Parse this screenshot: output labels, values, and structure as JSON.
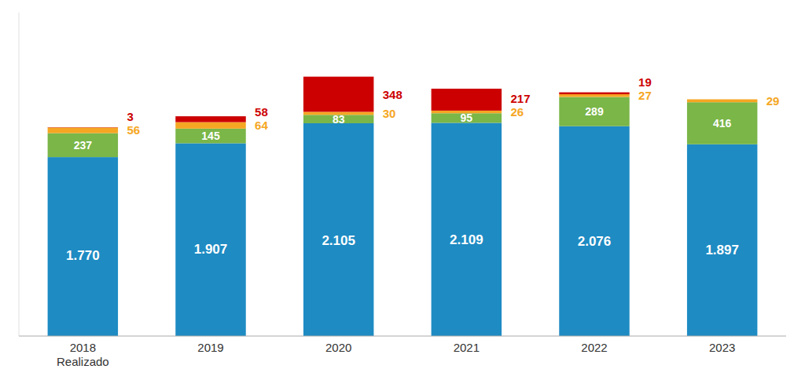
{
  "chart_data": {
    "type": "bar",
    "stacked": true,
    "data_labels": true,
    "grid": false,
    "tick_labels": "x",
    "categories": [
      "2018\nRealizado",
      "2019",
      "2020",
      "2021",
      "2022",
      "2023"
    ],
    "ylim": [
      0,
      3200
    ],
    "series": [
      {
        "color": "#1e8bc3",
        "values": [
          1770,
          1907,
          2105,
          2109,
          2076,
          1897
        ],
        "value_labels": [
          "1.770",
          "1.907",
          "2.105",
          "2.109",
          "2.076",
          "1.897"
        ]
      },
      {
        "color": "#7ab648",
        "values": [
          237,
          145,
          83,
          95,
          289,
          416
        ]
      },
      {
        "color": "#f5a623",
        "values": [
          56,
          64,
          30,
          26,
          27,
          29
        ]
      },
      {
        "color": "#cc0000",
        "values": [
          3,
          58,
          348,
          217,
          19,
          0
        ],
        "value_labels": [
          "3",
          "58",
          "348",
          "217",
          "19",
          null
        ]
      }
    ]
  }
}
